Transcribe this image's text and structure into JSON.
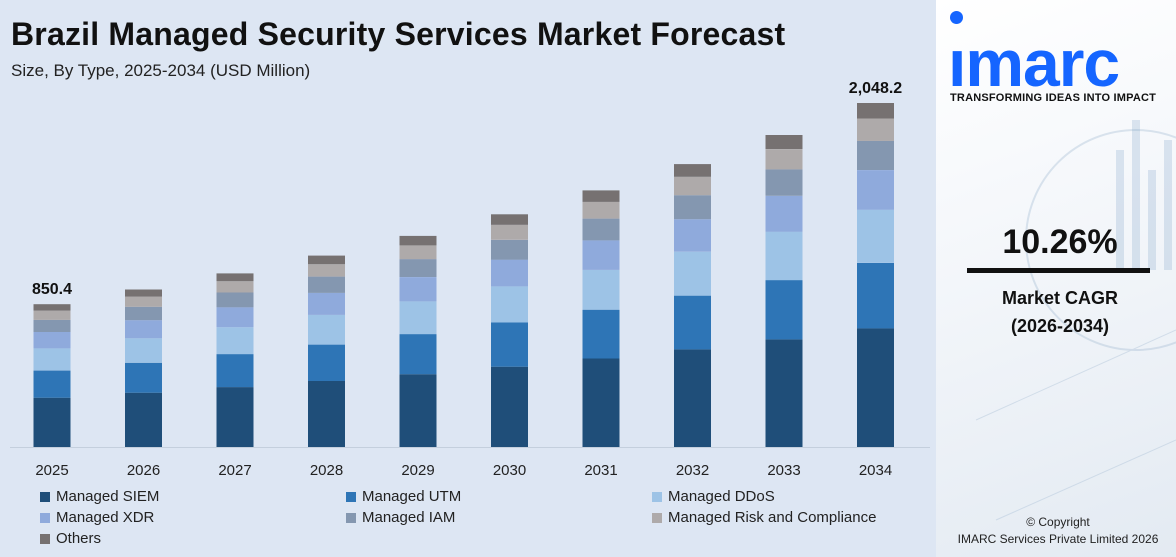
{
  "header": {
    "title": "Brazil Managed Security Services Market Forecast",
    "subtitle": "Size, By Type, 2025-2034 (USD Million)"
  },
  "chart_data": {
    "type": "bar",
    "stacked": true,
    "categories": [
      "2025",
      "2026",
      "2027",
      "2028",
      "2029",
      "2030",
      "2031",
      "2032",
      "2033",
      "2034"
    ],
    "totals": [
      850.4,
      937.6,
      1033.8,
      1139.9,
      1256.8,
      1385.8,
      1527.9,
      1684.6,
      1857.5,
      2048.2
    ],
    "total_labels": [
      {
        "index": 0,
        "text": "850.4"
      },
      {
        "index": 9,
        "text": "2,048.2"
      }
    ],
    "share": [
      0.345,
      0.19,
      0.155,
      0.115,
      0.085,
      0.065,
      0.045
    ],
    "series": [
      {
        "name": "Managed SIEM",
        "color": "#1f4e79"
      },
      {
        "name": "Managed UTM",
        "color": "#2e75b6"
      },
      {
        "name": "Managed DDoS",
        "color": "#9dc3e6"
      },
      {
        "name": "Managed XDR",
        "color": "#8faadc"
      },
      {
        "name": "Managed IAM",
        "color": "#8497b0"
      },
      {
        "name": "Managed Risk and Compliance",
        "color": "#aeaaaa"
      },
      {
        "name": "Others",
        "color": "#767171"
      }
    ],
    "ylim": [
      0,
      2100
    ],
    "grid": false,
    "legend_position": "bottom"
  },
  "sidebar": {
    "logo_text": "ımarc",
    "tagline": "TRANSFORMING IDEAS INTO IMPACT",
    "cagr_value": "10.26%",
    "cagr_label_line1": "Market CAGR",
    "cagr_label_line2": "(2026-2034)",
    "copyright_line1": "© Copyright",
    "copyright_line2": "IMARC Services Private Limited 2026",
    "brand_color": "#1565ff"
  }
}
